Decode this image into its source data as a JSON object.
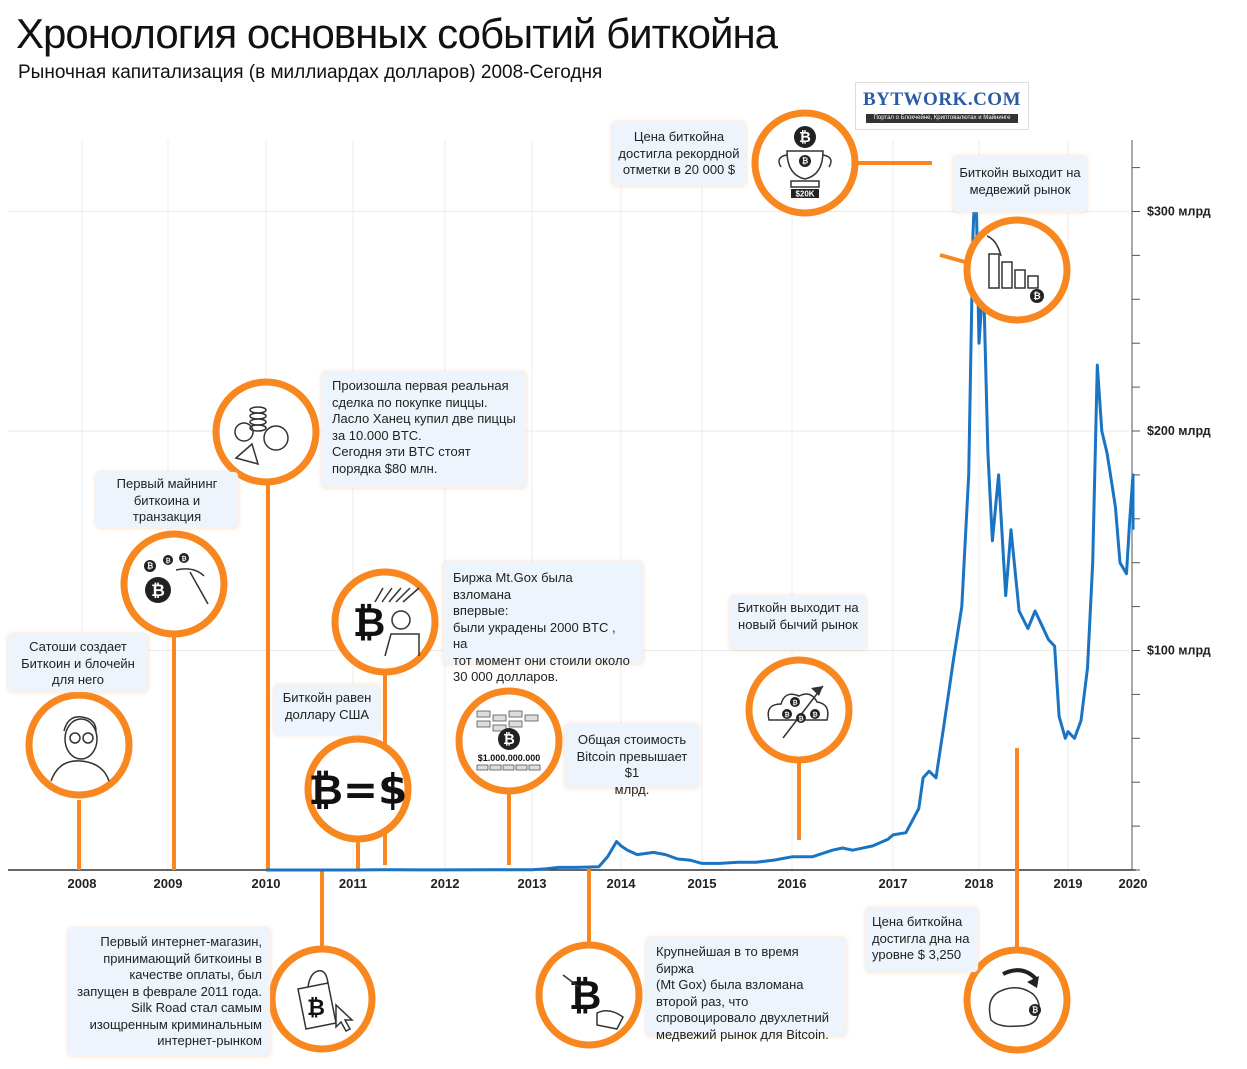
{
  "title": "Хронология основных событий биткойна",
  "subtitle": "Рыночная капитализация (в миллиардах долларов) 2008-Сегодня",
  "logo": {
    "name": "BYTWORK.COM",
    "tagline": "Портал о Блокчейне, Криптовалютах и Майнинге"
  },
  "chart_data": {
    "type": "line",
    "x_ticks": [
      "2008",
      "2009",
      "2010",
      "2011",
      "2012",
      "2013",
      "2014",
      "2015",
      "2016",
      "2017",
      "2018",
      "2019",
      "2020"
    ],
    "y_ticks": [
      "$100 млрд",
      "$200 млрд",
      "$300 млрд"
    ],
    "ylim": [
      0,
      320
    ],
    "grid": true,
    "series": [
      {
        "color": "#1a74c4",
        "points": [
          [
            2010.0,
            0
          ],
          [
            2010.6,
            0
          ],
          [
            2011.0,
            0
          ],
          [
            2011.3,
            0.1
          ],
          [
            2011.45,
            0.1
          ],
          [
            2011.7,
            0.03
          ],
          [
            2012.0,
            0.05
          ],
          [
            2012.5,
            0.08
          ],
          [
            2012.8,
            0.1
          ],
          [
            2013.0,
            0.15
          ],
          [
            2013.15,
            0.5
          ],
          [
            2013.3,
            1.2
          ],
          [
            2013.5,
            1.2
          ],
          [
            2013.75,
            1.5
          ],
          [
            2013.85,
            6
          ],
          [
            2013.95,
            13
          ],
          [
            2014.0,
            11
          ],
          [
            2014.08,
            9
          ],
          [
            2014.2,
            7
          ],
          [
            2014.4,
            8
          ],
          [
            2014.55,
            7
          ],
          [
            2014.7,
            5
          ],
          [
            2014.85,
            4.5
          ],
          [
            2015.0,
            3
          ],
          [
            2015.2,
            3
          ],
          [
            2015.4,
            3.5
          ],
          [
            2015.6,
            3.5
          ],
          [
            2015.8,
            4.5
          ],
          [
            2016.0,
            6
          ],
          [
            2016.2,
            6
          ],
          [
            2016.4,
            9
          ],
          [
            2016.5,
            10
          ],
          [
            2016.6,
            9
          ],
          [
            2016.8,
            11
          ],
          [
            2016.95,
            14
          ],
          [
            2017.0,
            16
          ],
          [
            2017.15,
            17
          ],
          [
            2017.3,
            28
          ],
          [
            2017.35,
            42
          ],
          [
            2017.42,
            45
          ],
          [
            2017.5,
            42
          ],
          [
            2017.6,
            68
          ],
          [
            2017.7,
            95
          ],
          [
            2017.8,
            120
          ],
          [
            2017.88,
            180
          ],
          [
            2017.93,
            290
          ],
          [
            2017.96,
            320
          ],
          [
            2017.98,
            280
          ],
          [
            2018.0,
            240
          ],
          [
            2018.05,
            270
          ],
          [
            2018.1,
            190
          ],
          [
            2018.15,
            150
          ],
          [
            2018.22,
            180
          ],
          [
            2018.3,
            125
          ],
          [
            2018.36,
            155
          ],
          [
            2018.45,
            118
          ],
          [
            2018.55,
            110
          ],
          [
            2018.63,
            118
          ],
          [
            2018.7,
            112
          ],
          [
            2018.78,
            105
          ],
          [
            2018.85,
            102
          ],
          [
            2018.9,
            70
          ],
          [
            2018.97,
            60
          ],
          [
            2019.0,
            63
          ],
          [
            2019.1,
            60
          ],
          [
            2019.2,
            68
          ],
          [
            2019.3,
            92
          ],
          [
            2019.38,
            140
          ],
          [
            2019.45,
            230
          ],
          [
            2019.52,
            200
          ],
          [
            2019.6,
            190
          ],
          [
            2019.68,
            175
          ],
          [
            2019.73,
            165
          ],
          [
            2019.8,
            140
          ],
          [
            2019.9,
            135
          ],
          [
            2019.95,
            160
          ],
          [
            2020.0,
            180
          ],
          [
            2020.05,
            155
          ]
        ]
      }
    ],
    "annotations": [
      {
        "year": 2008,
        "text": [
          "Сатоши создает",
          "Биткоин и блочейн",
          "для него"
        ]
      },
      {
        "year": 2009,
        "text": [
          "Первый майнинг",
          "биткоина и",
          "транзакция"
        ]
      },
      {
        "year": 2010,
        "text": [
          "Произошла первая реальная",
          "сделка по покупке пиццы.",
          "Ласло Ханец купил две пиццы",
          "за 10.000 BTC.",
          "Сегодня эти BTC стоят",
          "порядка $80 млн."
        ]
      },
      {
        "year": 2011,
        "text": [
          "Биткойн равен",
          "доллару США"
        ]
      },
      {
        "year": 2011,
        "text": [
          "Первый интернет-магазин,",
          "принимающий биткоины в",
          "качестве оплаты, был",
          "запущен в феврале 2011 года.",
          "Silk Road стал самым",
          "изощренным криминальным",
          "интернет-рынком"
        ]
      },
      {
        "year": 2011,
        "text": [
          "Биржа Mt.Gox была взломана",
          "впервые:",
          "были украдены 2000 BTC , на",
          "тот момент они стоили около",
          "30 000 долларов."
        ]
      },
      {
        "year": 2013,
        "text": [
          "Общая стоимость",
          "Bitcoin превышает $1",
          "млрд."
        ]
      },
      {
        "year": 2014,
        "text": [
          "Крупнейшая в то время биржа",
          "(Mt Gox) была взломана",
          "второй раз, что",
          "спровоцировало двухлетний",
          "медвежий рынок для Bitcoin."
        ]
      },
      {
        "year": 2016,
        "text": [
          "Биткойн выходит на",
          "новый бычий рынок"
        ]
      },
      {
        "year": 2017,
        "text": [
          "Цена биткойна",
          "достигла рекордной",
          "отметки в 20 000 $"
        ]
      },
      {
        "year": 2018,
        "text": [
          "Биткойн выходит на",
          "медвежий рынок"
        ]
      },
      {
        "year": 2018,
        "text": [
          "Цена биткойна",
          "достигла дна на",
          "уровне $ 3,250"
        ]
      }
    ]
  },
  "icons": {
    "satoshi": "satoshi-portrait-icon",
    "mining": "pickaxe-coins-icon",
    "pizza": "pizza-coins-icon",
    "parity": "btc-equals-usd-icon",
    "shop": "shopping-bag-cursor-icon",
    "hack1": "hacker-laptop-icon",
    "billion": "money-pile-icon",
    "hack2": "broken-coin-hand-icon",
    "bull": "rising-arrow-cloud-icon",
    "trophy": "trophy-icon",
    "bear": "falling-bars-icon",
    "bottom": "piggy-bank-icon"
  },
  "trophy_label": "$20K",
  "billion_label": "$1.000.000.000",
  "parity_label": "₿=$"
}
